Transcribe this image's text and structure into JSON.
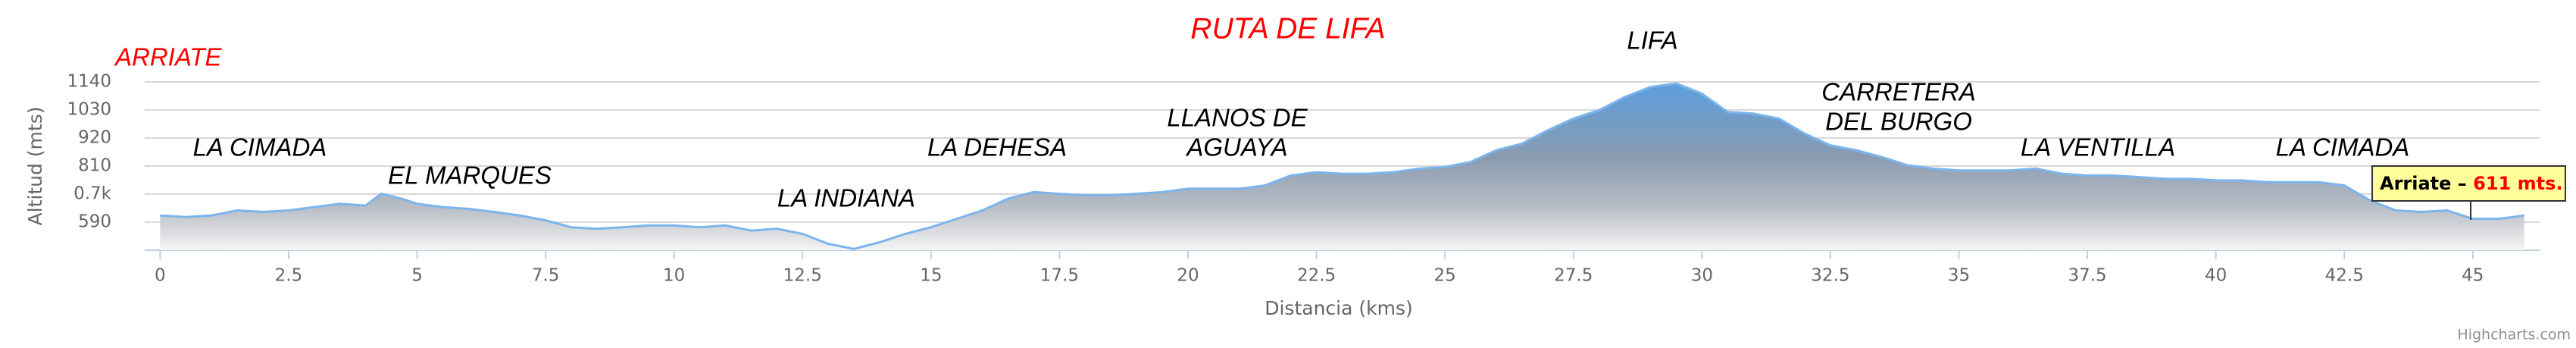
{
  "chart_data": {
    "type": "area",
    "title": "RUTA DE LIFA",
    "x_label": "Distancia (kms)",
    "y_label": "Altitud (mts)",
    "credit": "Highcharts.com",
    "color": "#7cb5ec",
    "x": [
      0,
      0.5,
      1,
      1.5,
      2,
      2.5,
      3,
      3.5,
      4,
      4.3,
      4.7,
      5,
      5.5,
      6,
      6.5,
      7,
      7.5,
      8,
      8.5,
      9,
      9.5,
      10,
      10.5,
      11,
      11.5,
      12,
      12.5,
      13,
      13.5,
      14,
      14.5,
      15,
      15.5,
      16,
      16.5,
      17,
      17.5,
      18,
      18.5,
      19,
      19.5,
      20,
      20.5,
      21,
      21.5,
      22,
      22.5,
      23,
      23.5,
      24,
      24.5,
      25,
      25.5,
      26,
      26.5,
      27,
      27.5,
      28,
      28.5,
      29,
      29.5,
      30,
      30.5,
      31,
      31.5,
      32,
      32.5,
      33,
      33.5,
      34,
      34.5,
      35,
      35.5,
      36,
      36.5,
      37,
      37.5,
      38,
      38.5,
      39,
      39.5,
      40,
      40.5,
      41,
      41.5,
      42,
      42.5,
      43,
      43.5,
      44,
      44.5,
      45,
      45.5,
      46
    ],
    "values": [
      616,
      610,
      616,
      636,
      630,
      636,
      649,
      662,
      655,
      701,
      682,
      662,
      649,
      642,
      630,
      616,
      597,
      570,
      564,
      570,
      577,
      577,
      570,
      577,
      557,
      564,
      544,
      505,
      485,
      511,
      544,
      570,
      603,
      636,
      682,
      708,
      701,
      695,
      695,
      701,
      708,
      721,
      721,
      721,
      734,
      773,
      786,
      780,
      780,
      786,
      800,
      806,
      826,
      872,
      898,
      950,
      996,
      1029,
      1081,
      1120,
      1134,
      1094,
      1022,
      1016,
      996,
      937,
      891,
      872,
      845,
      813,
      800,
      793,
      793,
      793,
      800,
      780,
      773,
      773,
      767,
      760,
      760,
      754,
      754,
      747,
      747,
      747,
      734,
      675,
      636,
      630,
      636,
      603,
      603,
      616
    ],
    "xlim": [
      -0.3,
      46.3
    ],
    "ylim": [
      480,
      1140
    ],
    "xticks": [
      0,
      2.5,
      5,
      7.5,
      10,
      12.5,
      15,
      17.5,
      20,
      22.5,
      25,
      27.5,
      30,
      32.5,
      35,
      37.5,
      40,
      42.5,
      45
    ],
    "yticks": [
      590,
      {
        "value": 700,
        "label": "0.7k"
      },
      810,
      920,
      1030,
      1140
    ],
    "grid": true,
    "annotations": [
      {
        "lines": [
          "ARRIATE"
        ],
        "color": "#ff0000"
      },
      {
        "lines": [
          "LA CIMADA"
        ],
        "color": "#000000"
      },
      {
        "lines": [
          "EL MARQUES"
        ],
        "color": "#000000"
      },
      {
        "lines": [
          "LA INDIANA"
        ],
        "color": "#000000"
      },
      {
        "lines": [
          "LA DEHESA"
        ],
        "color": "#000000"
      },
      {
        "lines": [
          "LLANOS DE",
          "AGUAYA"
        ],
        "color": "#000000"
      },
      {
        "lines": [
          "LIFA"
        ],
        "color": "#000000"
      },
      {
        "lines": [
          "CARRETERA",
          "DEL BURGO"
        ],
        "color": "#000000"
      },
      {
        "lines": [
          "LA VENTILLA"
        ],
        "color": "#000000"
      },
      {
        "lines": [
          "LA CIMADA"
        ],
        "color": "#000000"
      }
    ],
    "tooltip": {
      "name": "Arriate –",
      "value": "611 mts."
    }
  }
}
